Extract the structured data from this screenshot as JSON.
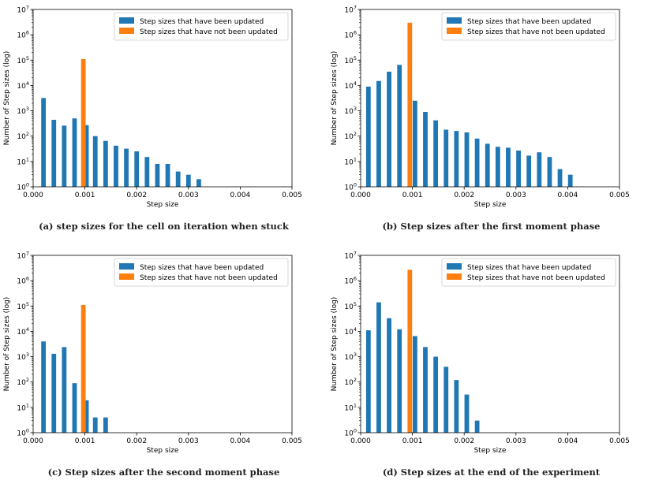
{
  "colors": {
    "updated": "#1f77b4",
    "not_updated": "#ff7f0e"
  },
  "chart_data": [
    {
      "type": "bar",
      "caption": "(a) step sizes for the cell on iteration when stuck",
      "xlabel": "Step size",
      "ylabel": "Number of Step sizes (log)",
      "yscale": "log",
      "ylim": [
        1,
        10000000
      ],
      "xlim": [
        0,
        0.005
      ],
      "xticks": [
        "0.000",
        "0.001",
        "0.002",
        "0.003",
        "0.004",
        "0.005"
      ],
      "yticks": [
        "10",
        "10",
        "10",
        "10",
        "10",
        "10",
        "10",
        "10"
      ],
      "ytick_exponents": [
        "0",
        "1",
        "2",
        "3",
        "4",
        "5",
        "6",
        "7"
      ],
      "legend": [
        "Step sizes that have been updated",
        "Step sizes that have not been updated"
      ],
      "series": [
        {
          "name": "Step sizes that have been updated",
          "x": [
            0.0002,
            0.0004,
            0.0006,
            0.0008,
            0.00103,
            0.0012,
            0.0014,
            0.0016,
            0.0018,
            0.002,
            0.0022,
            0.0024,
            0.0026,
            0.0028,
            0.003,
            0.0032,
            0.0034,
            0.0036
          ],
          "values": [
            3200,
            440,
            260,
            500,
            270,
            100,
            65,
            42,
            32,
            25,
            15,
            8,
            8,
            4,
            3,
            2,
            0,
            0
          ]
        },
        {
          "name": "Step sizes that have not been updated",
          "x": [
            0.00097
          ],
          "values": [
            110000
          ]
        }
      ]
    },
    {
      "type": "bar",
      "caption": "(b) Step sizes after the first moment phase",
      "xlabel": "Step size",
      "ylabel": "Number of Step sizes (log)",
      "yscale": "log",
      "ylim": [
        1,
        10000000
      ],
      "xlim": [
        0,
        0.005
      ],
      "xticks": [
        "0.000",
        "0.001",
        "0.002",
        "0.003",
        "0.004",
        "0.005"
      ],
      "yticks": [
        "10",
        "10",
        "10",
        "10",
        "10",
        "10",
        "10",
        "10"
      ],
      "ytick_exponents": [
        "0",
        "1",
        "2",
        "3",
        "4",
        "5",
        "6",
        "7"
      ],
      "legend": [
        "Step sizes that have been updated",
        "Step sizes that have not been updated"
      ],
      "series": [
        {
          "name": "Step sizes that have been updated",
          "x": [
            0.00015,
            0.00035,
            0.00055,
            0.00075,
            0.00105,
            0.00125,
            0.00145,
            0.00165,
            0.00185,
            0.00205,
            0.00225,
            0.00245,
            0.00265,
            0.00285,
            0.00305,
            0.00325,
            0.00345,
            0.00365,
            0.00385,
            0.00405,
            0.00425,
            0.00445,
            0.00465
          ],
          "values": [
            9000,
            15000,
            35000,
            65000,
            2500,
            900,
            420,
            180,
            160,
            140,
            80,
            50,
            38,
            35,
            27,
            17,
            23,
            15,
            5,
            3,
            0,
            0,
            0
          ]
        },
        {
          "name": "Step sizes that have not been updated",
          "x": [
            0.00095
          ],
          "values": [
            3000000
          ]
        }
      ]
    },
    {
      "type": "bar",
      "caption": "(c) Step sizes after the second moment phase",
      "xlabel": "Step size",
      "ylabel": "Number of Step sizes (log)",
      "yscale": "log",
      "ylim": [
        1,
        10000000
      ],
      "xlim": [
        0,
        0.005
      ],
      "xticks": [
        "0.000",
        "0.001",
        "0.002",
        "0.003",
        "0.004",
        "0.005"
      ],
      "yticks": [
        "10",
        "10",
        "10",
        "10",
        "10",
        "10",
        "10",
        "10"
      ],
      "ytick_exponents": [
        "0",
        "1",
        "2",
        "3",
        "4",
        "5",
        "6",
        "7"
      ],
      "legend": [
        "Step sizes that have been updated",
        "Step sizes that have not been updated"
      ],
      "series": [
        {
          "name": "Step sizes that have been updated",
          "x": [
            0.0002,
            0.0004,
            0.0006,
            0.0008,
            0.00103,
            0.0012,
            0.0014
          ],
          "values": [
            4000,
            1300,
            2400,
            90,
            19,
            4,
            4
          ]
        },
        {
          "name": "Step sizes that have not been updated",
          "x": [
            0.00097
          ],
          "values": [
            110000
          ]
        }
      ]
    },
    {
      "type": "bar",
      "caption": "(d) Step sizes at the end of the experiment",
      "xlabel": "Step size",
      "ylabel": "Number of Step sizes (log)",
      "yscale": "log",
      "ylim": [
        1,
        10000000
      ],
      "xlim": [
        0,
        0.005
      ],
      "xticks": [
        "0.000",
        "0.001",
        "0.002",
        "0.003",
        "0.004",
        "0.005"
      ],
      "yticks": [
        "10",
        "10",
        "10",
        "10",
        "10",
        "10",
        "10",
        "10"
      ],
      "ytick_exponents": [
        "0",
        "1",
        "2",
        "3",
        "4",
        "5",
        "6",
        "7"
      ],
      "legend": [
        "Step sizes that have been updated",
        "Step sizes that have not been updated"
      ],
      "series": [
        {
          "name": "Step sizes that have been updated",
          "x": [
            0.00015,
            0.00035,
            0.00055,
            0.00075,
            0.00105,
            0.00125,
            0.00145,
            0.00165,
            0.00185,
            0.00205,
            0.00225
          ],
          "values": [
            11000,
            140000,
            33000,
            12000,
            6500,
            2400,
            1000,
            400,
            120,
            32,
            3
          ]
        },
        {
          "name": "Step sizes that have not been updated",
          "x": [
            0.00095
          ],
          "values": [
            2700000
          ]
        }
      ]
    }
  ]
}
